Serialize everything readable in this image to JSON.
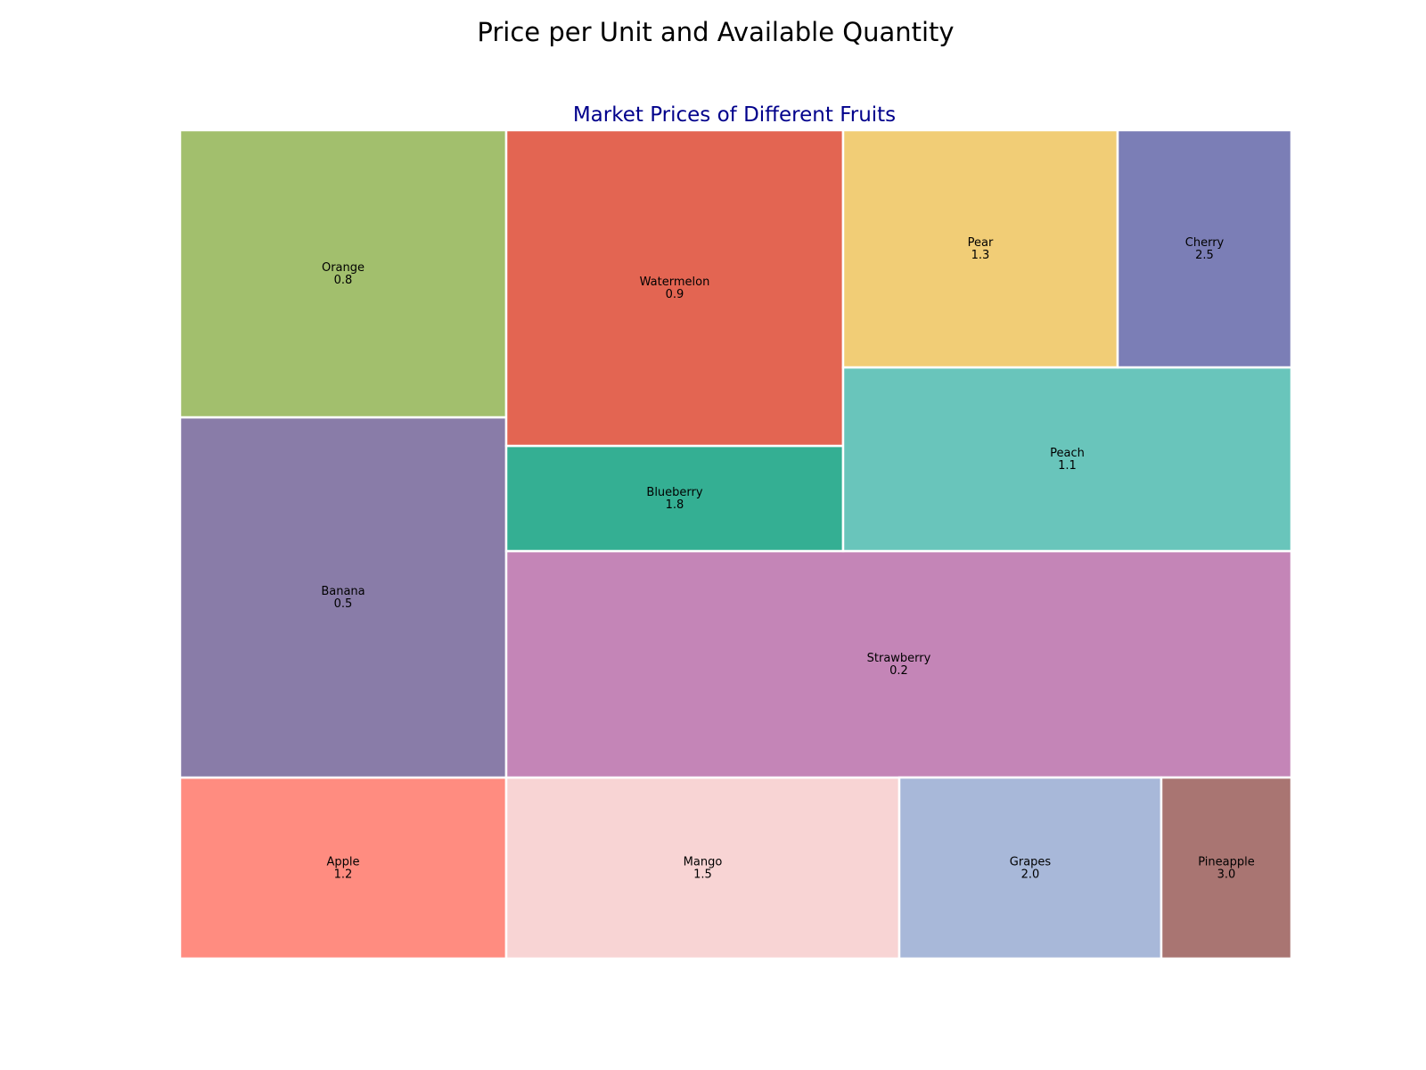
{
  "chart_data": {
    "type": "treemap",
    "title": "Price per Unit and Available Quantity",
    "subtitle": "Market Prices of Different Fruits",
    "items": [
      {
        "name": "Apple",
        "price": "1.2",
        "color": "#ff8c80"
      },
      {
        "name": "Banana",
        "price": "0.5",
        "color": "#897ca8"
      },
      {
        "name": "Orange",
        "price": "0.8",
        "color": "#a2bf6d"
      },
      {
        "name": "Mango",
        "price": "1.5",
        "color": "#f8d4d4"
      },
      {
        "name": "Strawberry",
        "price": "0.2",
        "color": "#c485b7"
      },
      {
        "name": "Blueberry",
        "price": "1.8",
        "color": "#34af93"
      },
      {
        "name": "Watermelon",
        "price": "0.9",
        "color": "#e36552"
      },
      {
        "name": "Grapes",
        "price": "2.0",
        "color": "#a8b8d9"
      },
      {
        "name": "Pineapple",
        "price": "3.0",
        "color": "#a97572"
      },
      {
        "name": "Peach",
        "price": "1.1",
        "color": "#69c5bb"
      },
      {
        "name": "Pear",
        "price": "1.3",
        "color": "#f1cd76"
      },
      {
        "name": "Cherry",
        "price": "2.5",
        "color": "#7b7eb6"
      }
    ]
  }
}
